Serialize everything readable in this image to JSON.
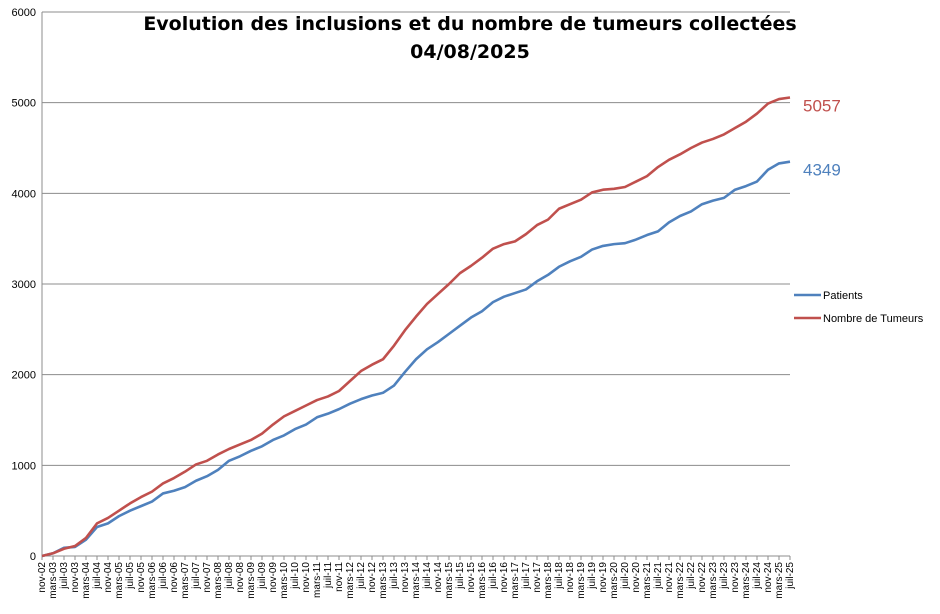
{
  "chart_data": {
    "type": "line",
    "title_line1": "Evolution des inclusions et du nombre de tumeurs collectées",
    "title_line2": "04/08/2025",
    "xlabel": "",
    "ylabel": "",
    "ylim": [
      0,
      6000
    ],
    "y_ticks": [
      0,
      1000,
      2000,
      3000,
      4000,
      5000,
      6000
    ],
    "grid": true,
    "legend_position": "right",
    "x_tick_labels": [
      "nov-02",
      "mars-03",
      "juil-03",
      "nov-03",
      "mars-04",
      "juil-04",
      "nov-04",
      "mars-05",
      "juil-05",
      "nov-05",
      "mars-06",
      "juil-06",
      "nov-06",
      "mars-07",
      "juil-07",
      "nov-07",
      "mars-08",
      "juil-08",
      "nov-08",
      "mars-09",
      "juil-09",
      "nov-09",
      "mars-10",
      "juil-10",
      "nov-10",
      "mars-11",
      "juil-11",
      "nov-11",
      "mars-12",
      "juil-12",
      "nov-12",
      "mars-13",
      "juil-13",
      "nov-13",
      "mars-14",
      "juil-14",
      "nov-14",
      "mars-15",
      "juil-15",
      "nov-15",
      "mars-16",
      "juil-16",
      "nov-16",
      "mars-17",
      "juil-17",
      "nov-17",
      "mars-18",
      "juil-18",
      "nov-18",
      "mars-19",
      "juil-19",
      "nov-19",
      "mars-20",
      "juil-20",
      "nov-20",
      "mars-21",
      "juil-21",
      "nov-21",
      "mars-22",
      "juil-22",
      "nov-22",
      "mars-23",
      "juil-23",
      "nov-23",
      "mars-24",
      "juil-24",
      "nov-24",
      "mars-25",
      "juil-25"
    ],
    "series": [
      {
        "name": "Patients",
        "color": "#4F81BD",
        "end_label": "4349",
        "values": [
          0,
          30,
          90,
          100,
          180,
          320,
          360,
          440,
          500,
          550,
          600,
          690,
          720,
          760,
          830,
          880,
          950,
          1050,
          1100,
          1160,
          1210,
          1280,
          1330,
          1400,
          1450,
          1530,
          1570,
          1620,
          1680,
          1730,
          1770,
          1800,
          1880,
          2030,
          2170,
          2280,
          2360,
          2450,
          2540,
          2630,
          2700,
          2800,
          2860,
          2900,
          2940,
          3030,
          3100,
          3190,
          3250,
          3300,
          3380,
          3420,
          3440,
          3450,
          3490,
          3540,
          3580,
          3680,
          3750,
          3800,
          3880,
          3920,
          3950,
          4040,
          4080,
          4130,
          4260,
          4330,
          4349
        ]
      },
      {
        "name": "Nombre de Tumeurs",
        "color": "#C0504D",
        "end_label": "5057",
        "values": [
          0,
          30,
          80,
          110,
          200,
          360,
          420,
          500,
          580,
          650,
          710,
          800,
          860,
          930,
          1010,
          1050,
          1120,
          1180,
          1230,
          1280,
          1350,
          1450,
          1540,
          1600,
          1660,
          1720,
          1760,
          1820,
          1930,
          2040,
          2110,
          2170,
          2320,
          2490,
          2640,
          2780,
          2890,
          3000,
          3120,
          3200,
          3290,
          3390,
          3440,
          3470,
          3550,
          3650,
          3710,
          3830,
          3880,
          3930,
          4010,
          4040,
          4050,
          4070,
          4130,
          4190,
          4290,
          4370,
          4430,
          4500,
          4560,
          4600,
          4650,
          4720,
          4790,
          4880,
          4990,
          5040,
          5057
        ]
      }
    ]
  }
}
